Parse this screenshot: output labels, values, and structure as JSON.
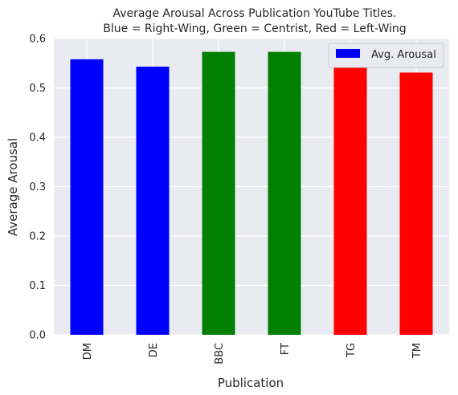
{
  "chart_data": {
    "type": "bar",
    "title_line1": "Average Arousal Across Publication YouTube Titles.",
    "title_line2": "Blue = Right-Wing, Green = Centrist, Red = Left-Wing",
    "xlabel": "Publication",
    "ylabel": "Average Arousal",
    "categories": [
      "DM",
      "DE",
      "BBC",
      "FT",
      "TG",
      "TM"
    ],
    "series": [
      {
        "name": "Avg. Arousal",
        "values": [
          0.558,
          0.543,
          0.573,
          0.573,
          0.545,
          0.531
        ]
      }
    ],
    "bar_colors": [
      "#0000ff",
      "#0000ff",
      "#008000",
      "#008000",
      "#ff0000",
      "#ff0000"
    ],
    "legend_color": "#0000ff",
    "yticks": [
      "0.0",
      "0.1",
      "0.2",
      "0.3",
      "0.4",
      "0.5",
      "0.6"
    ],
    "ylim": [
      0,
      0.6
    ],
    "grid": true,
    "legend_position": "top-right",
    "background_color": "#eaeaf2",
    "grid_color": "#ffffff"
  }
}
